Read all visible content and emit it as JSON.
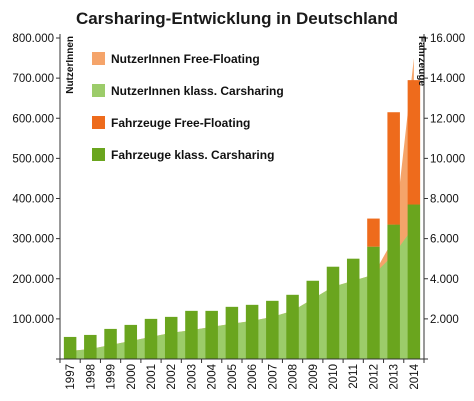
{
  "chart_data": {
    "type": "bar",
    "title": "Carsharing-Entwicklung in Deutschland",
    "ylabel_left": "NutzerInnen",
    "ylabel_right": "Fahrzeuge",
    "categories": [
      "1997",
      "1998",
      "1999",
      "2000",
      "2001",
      "2002",
      "2003",
      "2004",
      "2005",
      "2006",
      "2007",
      "2008",
      "2009",
      "2010",
      "2011",
      "2012",
      "2013",
      "2014"
    ],
    "ylim_left": [
      0,
      800000
    ],
    "ylim_right": [
      0,
      16000
    ],
    "left_ticks": [
      "800.000",
      "700.000",
      "600.000",
      "500.000",
      "400.000",
      "300.000",
      "200.000",
      "100.000",
      ""
    ],
    "right_ticks": [
      "16.000",
      "14.000",
      "12.000",
      "10.000",
      "8.000",
      "6.000",
      "4.000",
      "2.000",
      ""
    ],
    "left_tick_values": [
      800000,
      700000,
      600000,
      500000,
      400000,
      300000,
      200000,
      100000,
      0
    ],
    "right_tick_values": [
      16000,
      14000,
      12000,
      10000,
      8000,
      6000,
      4000,
      2000,
      0
    ],
    "series": [
      {
        "name": "NutzerInnen Free-Floating",
        "axis": "left",
        "kind": "area",
        "color": "#f5a46a",
        "values": [
          0,
          0,
          0,
          0,
          0,
          0,
          0,
          0,
          0,
          0,
          0,
          0,
          0,
          0,
          0,
          210000,
          300000,
          750000
        ]
      },
      {
        "name": "NutzerInnen klass. Carsharing",
        "axis": "left",
        "kind": "area",
        "color": "#9ccc6a",
        "values": [
          20000,
          25000,
          35000,
          45000,
          55000,
          65000,
          72000,
          80000,
          88000,
          95000,
          105000,
          120000,
          150000,
          180000,
          195000,
          210000,
          260000,
          330000
        ]
      },
      {
        "name": "Fahrzeuge Free-Floating",
        "axis": "right",
        "kind": "bar",
        "color": "#ee6b1c",
        "values": [
          0,
          0,
          0,
          0,
          0,
          0,
          0,
          0,
          0,
          0,
          0,
          0,
          0,
          0,
          0,
          1400,
          5600,
          6200
        ]
      },
      {
        "name": "Fahrzeuge klass. Carsharing",
        "axis": "right",
        "kind": "bar",
        "color": "#6aa51e",
        "values": [
          1100,
          1200,
          1500,
          1700,
          2000,
          2100,
          2400,
          2400,
          2600,
          2700,
          2900,
          3200,
          3900,
          4600,
          5000,
          5600,
          6700,
          7700
        ]
      }
    ],
    "legend": {
      "position": "top-left-inside"
    },
    "grid": false
  }
}
